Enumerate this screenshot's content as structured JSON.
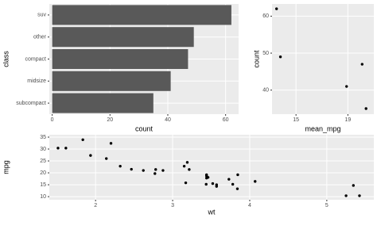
{
  "chart_data": [
    {
      "type": "hbar",
      "categories": [
        "suv",
        "other",
        "compact",
        "midsize",
        "subcompact"
      ],
      "values": [
        62,
        49,
        47,
        41,
        35
      ],
      "color": "#595959",
      "xlim": [
        -1,
        64.5
      ],
      "xticks": [
        0,
        20,
        40,
        60
      ],
      "x_label": "count",
      "y_label": "class",
      "grid": true
    },
    {
      "type": "scatter",
      "x": [
        13.5,
        13.8,
        18.9,
        20.1,
        20.4
      ],
      "values": [
        62,
        49,
        41,
        47,
        35
      ],
      "color": "#000000",
      "xlim": [
        13.15,
        21.0
      ],
      "xticks": [
        15,
        19
      ],
      "ylim": [
        33.5,
        63.3
      ],
      "yticks": [
        40,
        50,
        60
      ],
      "x_label": "mean_mpg",
      "y_label": "count",
      "grid": true
    },
    {
      "type": "scatter",
      "x": [
        2.62,
        2.875,
        2.32,
        3.215,
        3.44,
        3.46,
        3.57,
        3.19,
        3.15,
        3.44,
        3.44,
        4.07,
        3.73,
        3.78,
        5.25,
        5.424,
        5.345,
        2.2,
        1.615,
        1.835,
        2.465,
        3.52,
        3.435,
        3.84,
        3.845,
        1.935,
        2.14,
        1.513,
        3.17,
        2.77,
        3.57,
        2.78
      ],
      "values": [
        21.0,
        21.0,
        22.8,
        21.4,
        18.7,
        18.1,
        14.3,
        24.4,
        22.8,
        19.2,
        17.8,
        16.4,
        17.3,
        15.2,
        10.4,
        10.4,
        14.7,
        32.4,
        30.4,
        33.9,
        21.5,
        15.5,
        15.2,
        13.3,
        19.2,
        27.3,
        26.0,
        30.4,
        15.8,
        19.7,
        15.0,
        21.4
      ],
      "color": "#000000",
      "xlim": [
        1.4,
        5.61
      ],
      "xticks": [
        2,
        3,
        4,
        5
      ],
      "ylim": [
        8.7,
        36
      ],
      "yticks": [
        10,
        15,
        20,
        25,
        30,
        35
      ],
      "x_label": "wt",
      "y_label": "mpg",
      "grid": true
    }
  ]
}
